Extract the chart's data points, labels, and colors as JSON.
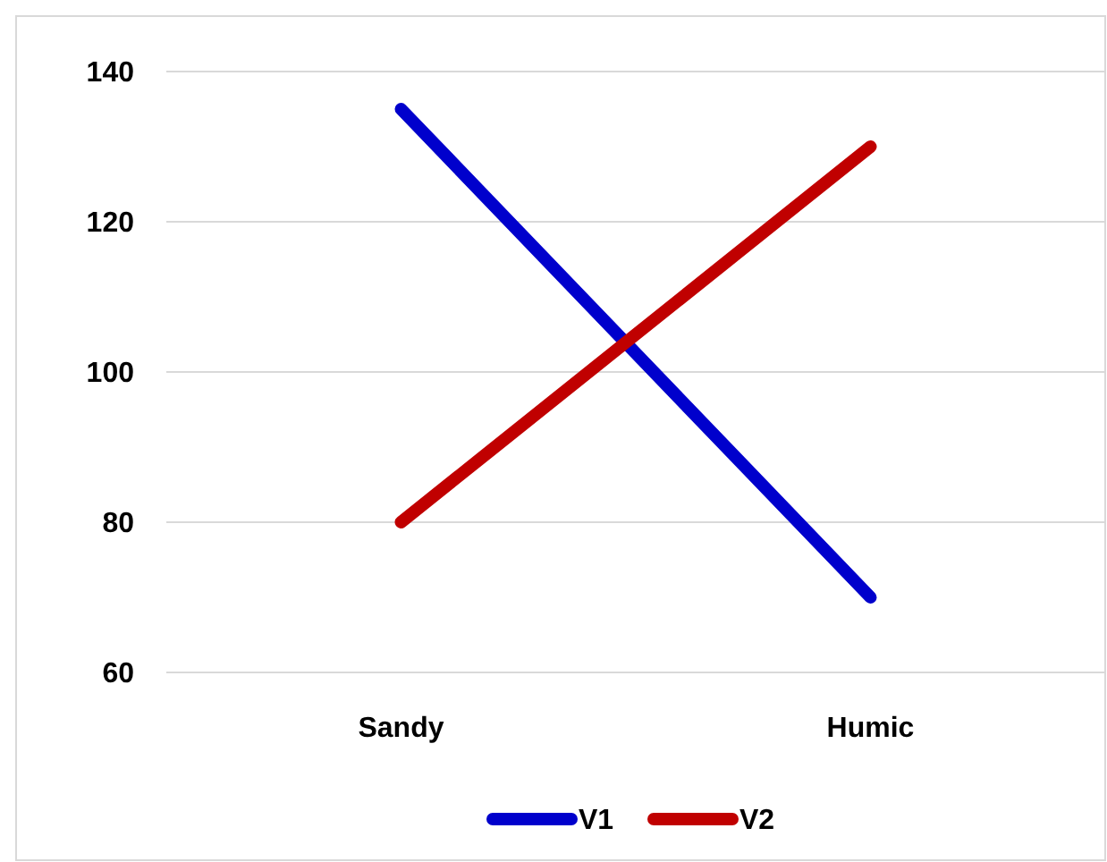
{
  "chart_data": {
    "type": "line",
    "categories": [
      "Sandy",
      "Humic"
    ],
    "series": [
      {
        "name": "V1",
        "color": "#0000cc",
        "values": [
          135,
          70
        ]
      },
      {
        "name": "V2",
        "color": "#c00000",
        "values": [
          80,
          130
        ]
      }
    ],
    "ylim": [
      60,
      140
    ],
    "yticks": [
      60,
      80,
      100,
      120,
      140
    ],
    "grid": "y",
    "legend": "bottom",
    "marker": "none",
    "line_style": "solid"
  }
}
